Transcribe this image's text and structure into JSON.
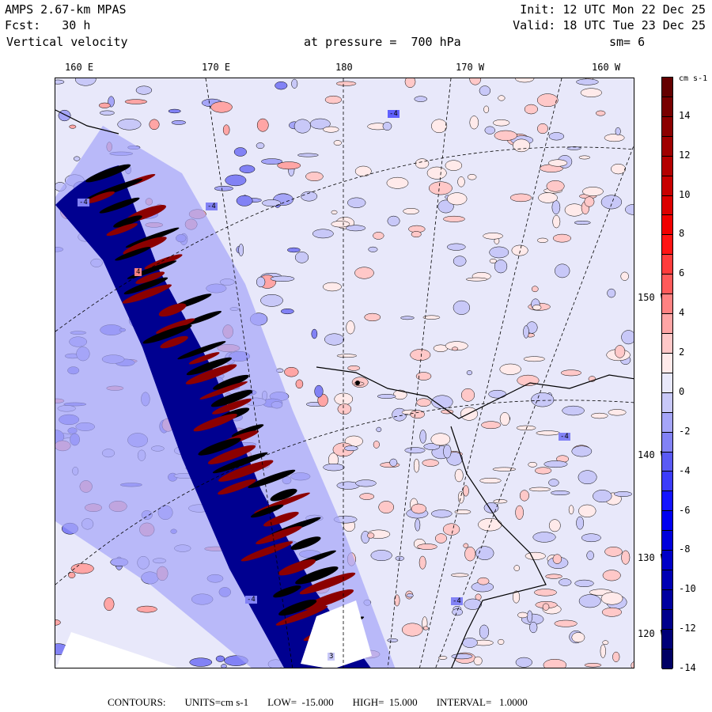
{
  "header": {
    "model": "AMPS 2.67-km MPAS",
    "forecast": "Fcst:   30 h",
    "field": "Vertical velocity",
    "init": "Init: 12 UTC Mon 22 Dec 25",
    "valid": "Valid: 18 UTC Tue 23 Dec 25",
    "level": "at pressure =  700 hPa",
    "smoothing": "sm= 6"
  },
  "map": {
    "top_lon_labels": [
      "160 E",
      "170 E",
      "180",
      "170 W",
      "160 W"
    ],
    "right_lon_labels": [
      "150 W",
      "140 W",
      "130 W",
      "120 W"
    ],
    "contour_box_labels": [
      "-4",
      "-4",
      "-4",
      "4",
      "-4",
      "-4",
      "-4",
      "3"
    ]
  },
  "colorbar": {
    "units": "cm s-1",
    "tick_labels": [
      "14",
      "12",
      "10",
      "8",
      "6",
      "4",
      "2",
      "0",
      "-2",
      "-4",
      "-6",
      "-8",
      "-10",
      "-12",
      "-14"
    ],
    "colors": [
      "#640000",
      "#780000",
      "#8c0000",
      "#a00000",
      "#b40000",
      "#c80000",
      "#dc0000",
      "#f00000",
      "#ff1414",
      "#ff3c3c",
      "#ff5a5a",
      "#ff8282",
      "#ffa5a5",
      "#ffc8c8",
      "#ffeaea",
      "#e8e8fa",
      "#c8c8f8",
      "#a5a5f8",
      "#8282f5",
      "#5a5af5",
      "#3c3cfa",
      "#1414ff",
      "#0000f0",
      "#0000dc",
      "#0000c8",
      "#0000b4",
      "#0000a0",
      "#00008c",
      "#000078",
      "#000064"
    ]
  },
  "footer": {
    "contours": "CONTOURS:",
    "units": "UNITS=cm s-1",
    "low": "LOW=  -15.000",
    "high": "HIGH=  15.000",
    "interval": "INTERVAL=   1.0000"
  }
}
